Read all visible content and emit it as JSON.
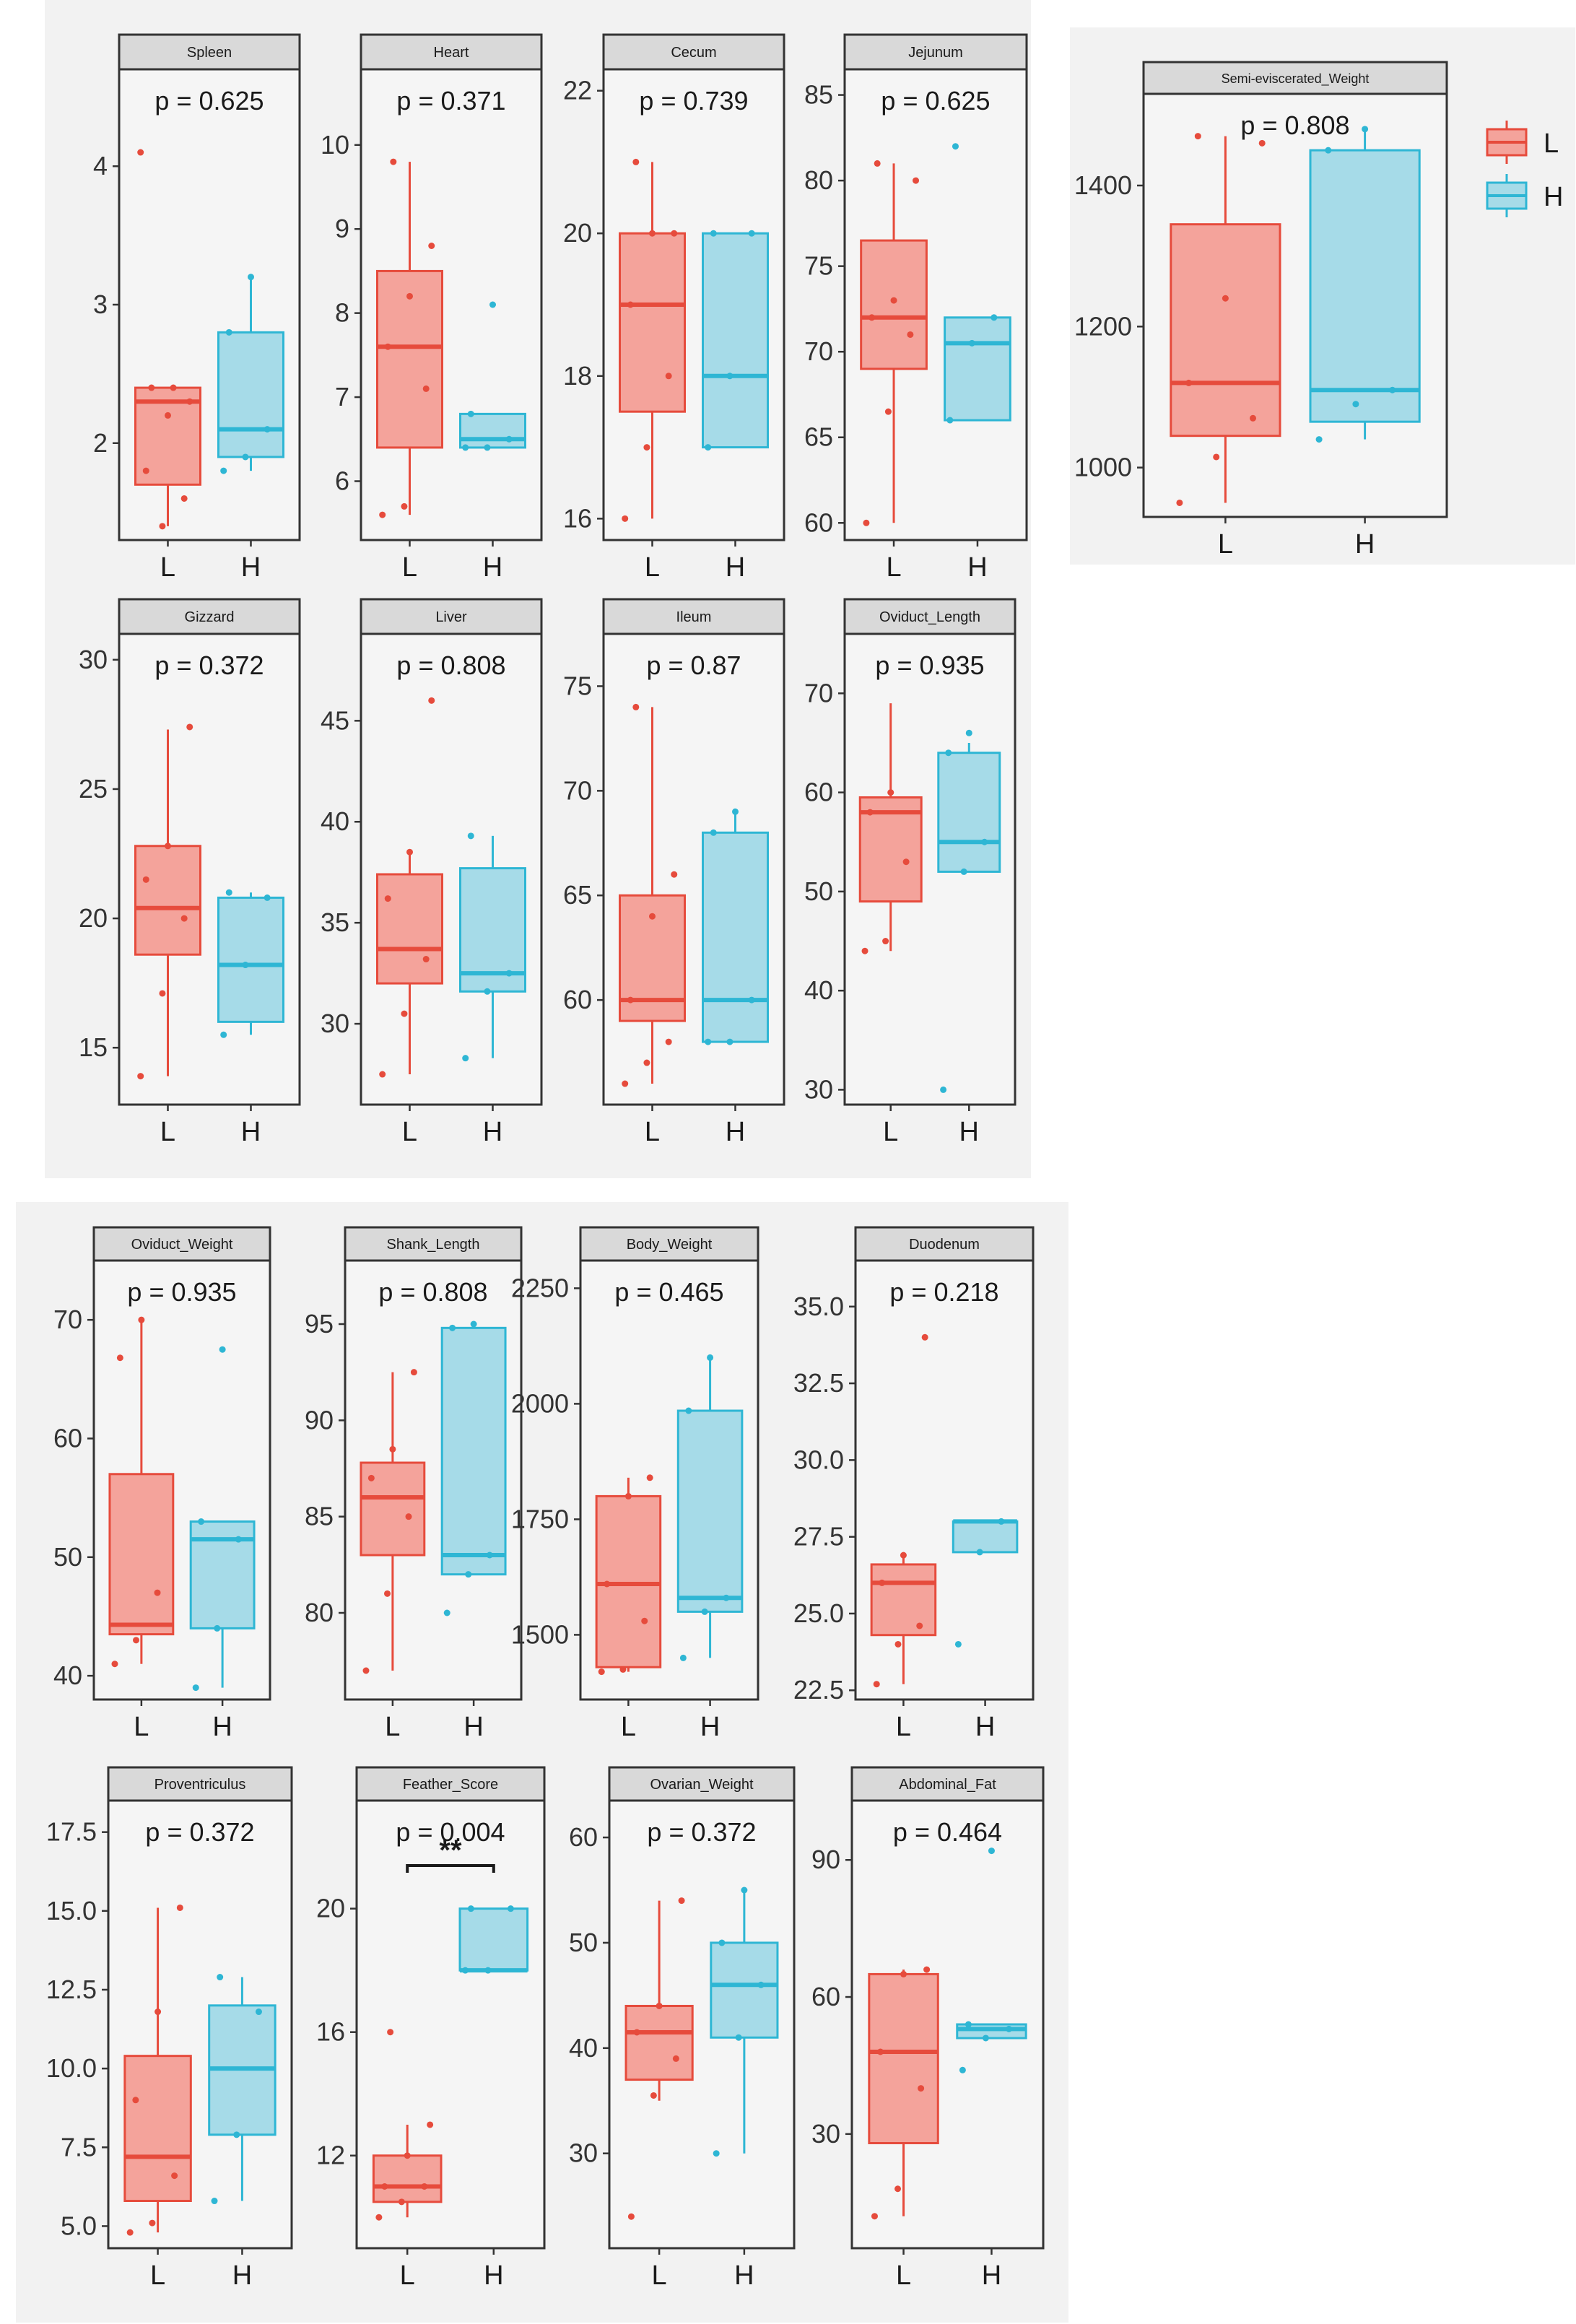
{
  "colors": {
    "L_fill": "#f4a39b",
    "L_line": "#e64b3c",
    "H_fill": "#a6dbe8",
    "H_line": "#2eb6d4"
  },
  "legend": {
    "items": [
      "L",
      "H"
    ]
  },
  "chart_data": [
    {
      "type": "box",
      "title": "Spleen",
      "pvalue": "p = 0.625",
      "ylim": [
        1.3,
        4.7
      ],
      "yticks": [
        {
          "v": 2,
          "label": "2"
        },
        {
          "v": 3,
          "label": "3"
        },
        {
          "v": 4,
          "label": "4"
        }
      ],
      "categories": [
        "L",
        "H"
      ],
      "series": [
        {
          "name": "L",
          "min": 1.4,
          "q1": 1.7,
          "median": 2.3,
          "q3": 2.4,
          "max": 2.4,
          "points": [
            4.1,
            1.4,
            1.6,
            1.8,
            2.2,
            2.3,
            2.4,
            2.4
          ]
        },
        {
          "name": "H",
          "min": 1.8,
          "q1": 1.9,
          "median": 2.1,
          "q3": 2.8,
          "max": 3.2,
          "points": [
            1.8,
            1.9,
            2.1,
            2.8,
            3.2
          ]
        }
      ]
    },
    {
      "type": "box",
      "title": "Heart",
      "pvalue": "p = 0.371",
      "ylim": [
        5.3,
        10.9
      ],
      "yticks": [
        {
          "v": 6,
          "label": "6"
        },
        {
          "v": 7,
          "label": "7"
        },
        {
          "v": 8,
          "label": "8"
        },
        {
          "v": 9,
          "label": "9"
        },
        {
          "v": 10,
          "label": "10"
        }
      ],
      "categories": [
        "L",
        "H"
      ],
      "series": [
        {
          "name": "L",
          "min": 5.6,
          "q1": 6.4,
          "median": 7.6,
          "q3": 8.5,
          "max": 9.8,
          "points": [
            5.6,
            5.7,
            7.1,
            7.6,
            8.2,
            8.8,
            9.8
          ]
        },
        {
          "name": "H",
          "min": 6.4,
          "q1": 6.4,
          "median": 6.5,
          "q3": 6.8,
          "max": 6.8,
          "points": [
            6.4,
            6.4,
            6.5,
            6.8,
            8.1
          ]
        }
      ]
    },
    {
      "type": "box",
      "title": "Cecum",
      "pvalue": "p = 0.739",
      "ylim": [
        15.7,
        22.3
      ],
      "yticks": [
        {
          "v": 16,
          "label": "16"
        },
        {
          "v": 18,
          "label": "18"
        },
        {
          "v": 20,
          "label": "20"
        },
        {
          "v": 22,
          "label": "22"
        }
      ],
      "categories": [
        "L",
        "H"
      ],
      "series": [
        {
          "name": "L",
          "min": 16,
          "q1": 17.5,
          "median": 19,
          "q3": 20,
          "max": 21,
          "points": [
            16,
            17,
            18,
            19,
            20,
            20,
            21
          ]
        },
        {
          "name": "H",
          "min": 17,
          "q1": 17,
          "median": 18,
          "q3": 20,
          "max": 20,
          "points": [
            17,
            18,
            20,
            20
          ]
        }
      ]
    },
    {
      "type": "box",
      "title": "Jejunum",
      "pvalue": "p = 0.625",
      "ylim": [
        59,
        86.5
      ],
      "yticks": [
        {
          "v": 60,
          "label": "60"
        },
        {
          "v": 65,
          "label": "65"
        },
        {
          "v": 70,
          "label": "70"
        },
        {
          "v": 75,
          "label": "75"
        },
        {
          "v": 80,
          "label": "80"
        },
        {
          "v": 85,
          "label": "85"
        }
      ],
      "categories": [
        "L",
        "H"
      ],
      "series": [
        {
          "name": "L",
          "min": 60,
          "q1": 69,
          "median": 72,
          "q3": 76.5,
          "max": 81,
          "points": [
            60,
            66.5,
            71,
            72,
            73,
            80,
            81
          ]
        },
        {
          "name": "H",
          "min": 66,
          "q1": 66,
          "median": 70.5,
          "q3": 72,
          "max": 72,
          "points": [
            66,
            70.5,
            72,
            82
          ]
        }
      ]
    },
    {
      "type": "box",
      "title": "Semi-eviscerated_Weight",
      "pvalue": "p = 0.808",
      "ylim": [
        930,
        1530
      ],
      "yticks": [
        {
          "v": 1000,
          "label": "1000"
        },
        {
          "v": 1200,
          "label": "1200"
        },
        {
          "v": 1400,
          "label": "1400"
        }
      ],
      "categories": [
        "L",
        "H"
      ],
      "series": [
        {
          "name": "L",
          "min": 950,
          "q1": 1045,
          "median": 1120,
          "q3": 1345,
          "max": 1470,
          "points": [
            950,
            1015,
            1070,
            1120,
            1240,
            1460,
            1470
          ]
        },
        {
          "name": "H",
          "min": 1040,
          "q1": 1065,
          "median": 1110,
          "q3": 1450,
          "max": 1480,
          "points": [
            1040,
            1090,
            1110,
            1450,
            1480
          ]
        }
      ]
    },
    {
      "type": "box",
      "title": "Gizzard",
      "pvalue": "p = 0.372",
      "ylim": [
        12.8,
        31
      ],
      "yticks": [
        {
          "v": 15,
          "label": "15"
        },
        {
          "v": 20,
          "label": "20"
        },
        {
          "v": 25,
          "label": "25"
        },
        {
          "v": 30,
          "label": "30"
        }
      ],
      "categories": [
        "L",
        "H"
      ],
      "series": [
        {
          "name": "L",
          "min": 13.9,
          "q1": 18.6,
          "median": 20.4,
          "q3": 22.8,
          "max": 27.3,
          "points": [
            13.9,
            17.1,
            20.0,
            21.5,
            22.8,
            27.4
          ]
        },
        {
          "name": "H",
          "min": 15.5,
          "q1": 16,
          "median": 18.2,
          "q3": 20.8,
          "max": 21,
          "points": [
            15.5,
            18.2,
            20.8,
            21
          ]
        }
      ]
    },
    {
      "type": "box",
      "title": "Liver",
      "pvalue": "p = 0.808",
      "ylim": [
        26,
        49.3
      ],
      "yticks": [
        {
          "v": 30,
          "label": "30"
        },
        {
          "v": 35,
          "label": "35"
        },
        {
          "v": 40,
          "label": "40"
        },
        {
          "v": 45,
          "label": "45"
        }
      ],
      "categories": [
        "L",
        "H"
      ],
      "series": [
        {
          "name": "L",
          "min": 27.5,
          "q1": 32,
          "median": 33.7,
          "q3": 37.4,
          "max": 38.5,
          "points": [
            27.5,
            30.5,
            33.2,
            36.2,
            38.5,
            46
          ]
        },
        {
          "name": "H",
          "min": 28.3,
          "q1": 31.6,
          "median": 32.5,
          "q3": 37.7,
          "max": 39.3,
          "points": [
            28.3,
            31.6,
            32.5,
            39.3
          ]
        }
      ]
    },
    {
      "type": "box",
      "title": "Ileum",
      "pvalue": "p = 0.87",
      "ylim": [
        55,
        77.5
      ],
      "yticks": [
        {
          "v": 60,
          "label": "60"
        },
        {
          "v": 65,
          "label": "65"
        },
        {
          "v": 70,
          "label": "70"
        },
        {
          "v": 75,
          "label": "75"
        }
      ],
      "categories": [
        "L",
        "H"
      ],
      "series": [
        {
          "name": "L",
          "min": 56,
          "q1": 59,
          "median": 60,
          "q3": 65,
          "max": 74,
          "points": [
            56,
            57,
            58,
            60,
            64,
            66,
            74
          ]
        },
        {
          "name": "H",
          "min": 58,
          "q1": 58,
          "median": 60,
          "q3": 68,
          "max": 69,
          "points": [
            58,
            58,
            60,
            68,
            69
          ]
        }
      ]
    },
    {
      "type": "box",
      "title": "Oviduct_Length",
      "pvalue": "p = 0.935",
      "ylim": [
        28.5,
        76
      ],
      "yticks": [
        {
          "v": 30,
          "label": "30"
        },
        {
          "v": 40,
          "label": "40"
        },
        {
          "v": 50,
          "label": "50"
        },
        {
          "v": 60,
          "label": "60"
        },
        {
          "v": 70,
          "label": "70"
        }
      ],
      "categories": [
        "L",
        "H"
      ],
      "series": [
        {
          "name": "L",
          "min": 44,
          "q1": 49,
          "median": 58,
          "q3": 59.5,
          "max": 69,
          "points": [
            44,
            45,
            53,
            58,
            60
          ]
        },
        {
          "name": "H",
          "min": 52,
          "q1": 52,
          "median": 55,
          "q3": 64,
          "max": 65,
          "points": [
            30,
            52,
            55,
            64,
            66
          ]
        }
      ]
    },
    {
      "type": "box",
      "title": "Oviduct_Weight",
      "pvalue": "p = 0.935",
      "ylim": [
        38,
        75
      ],
      "yticks": [
        {
          "v": 40,
          "label": "40"
        },
        {
          "v": 50,
          "label": "50"
        },
        {
          "v": 60,
          "label": "60"
        },
        {
          "v": 70,
          "label": "70"
        }
      ],
      "categories": [
        "L",
        "H"
      ],
      "series": [
        {
          "name": "L",
          "min": 41,
          "q1": 43.5,
          "median": 44.3,
          "q3": 57,
          "max": 70,
          "points": [
            41,
            43,
            47,
            66.8,
            70
          ]
        },
        {
          "name": "H",
          "min": 39,
          "q1": 44,
          "median": 51.5,
          "q3": 53,
          "max": 53,
          "points": [
            39,
            44,
            51.5,
            53,
            67.5
          ]
        }
      ]
    },
    {
      "type": "box",
      "title": "Shank_Length",
      "pvalue": "p = 0.808",
      "ylim": [
        75.5,
        98.3
      ],
      "yticks": [
        {
          "v": 80,
          "label": "80"
        },
        {
          "v": 85,
          "label": "85"
        },
        {
          "v": 90,
          "label": "90"
        },
        {
          "v": 95,
          "label": "95"
        }
      ],
      "categories": [
        "L",
        "H"
      ],
      "series": [
        {
          "name": "L",
          "min": 77,
          "q1": 83,
          "median": 86,
          "q3": 87.8,
          "max": 92.5,
          "points": [
            77,
            81,
            85,
            87,
            88.5,
            92.5
          ]
        },
        {
          "name": "H",
          "min": 82,
          "q1": 82,
          "median": 83,
          "q3": 94.8,
          "max": 94.8,
          "points": [
            80,
            82,
            83,
            94.8,
            95
          ]
        }
      ]
    },
    {
      "type": "box",
      "title": "Body_Weight",
      "pvalue": "p = 0.465",
      "ylim": [
        1360,
        2310
      ],
      "yticks": [
        {
          "v": 1500,
          "label": "1500"
        },
        {
          "v": 1750,
          "label": "1750"
        },
        {
          "v": 2000,
          "label": "2000"
        },
        {
          "v": 2250,
          "label": "2250"
        }
      ],
      "categories": [
        "L",
        "H"
      ],
      "series": [
        {
          "name": "L",
          "min": 1420,
          "q1": 1430,
          "median": 1610,
          "q3": 1800,
          "max": 1840,
          "points": [
            1420,
            1425,
            1530,
            1610,
            1800,
            1840
          ]
        },
        {
          "name": "H",
          "min": 1450,
          "q1": 1550,
          "median": 1580,
          "q3": 1985,
          "max": 2100,
          "points": [
            1450,
            1550,
            1580,
            1985,
            2100
          ]
        }
      ]
    },
    {
      "type": "box",
      "title": "Duodenum",
      "pvalue": "p = 0.218",
      "ylim": [
        22.2,
        36.5
      ],
      "yticks": [
        {
          "v": 22.5,
          "label": "22.5"
        },
        {
          "v": 25,
          "label": "25.0"
        },
        {
          "v": 27.5,
          "label": "27.5"
        },
        {
          "v": 30,
          "label": "30.0"
        },
        {
          "v": 32.5,
          "label": "32.5"
        },
        {
          "v": 35,
          "label": "35.0"
        }
      ],
      "categories": [
        "L",
        "H"
      ],
      "series": [
        {
          "name": "L",
          "min": 22.7,
          "q1": 24.3,
          "median": 26.0,
          "q3": 26.6,
          "max": 27.0,
          "points": [
            22.7,
            24.0,
            24.6,
            26.0,
            26.9,
            34.0
          ]
        },
        {
          "name": "H",
          "min": 27.0,
          "q1": 27.0,
          "median": 28.0,
          "q3": 28.0,
          "max": 28.0,
          "points": [
            24.0,
            27.0,
            28.0
          ]
        }
      ]
    },
    {
      "type": "box",
      "title": "Proventriculus",
      "pvalue": "p = 0.372",
      "ylim": [
        4.3,
        18.5
      ],
      "yticks": [
        {
          "v": 5,
          "label": "5.0"
        },
        {
          "v": 7.5,
          "label": "7.5"
        },
        {
          "v": 10,
          "label": "10.0"
        },
        {
          "v": 12.5,
          "label": "12.5"
        },
        {
          "v": 15,
          "label": "15.0"
        },
        {
          "v": 17.5,
          "label": "17.5"
        }
      ],
      "categories": [
        "L",
        "H"
      ],
      "series": [
        {
          "name": "L",
          "min": 4.8,
          "q1": 5.8,
          "median": 7.2,
          "q3": 10.4,
          "max": 15.1,
          "points": [
            4.8,
            5.1,
            6.6,
            9.0,
            11.8,
            15.1
          ]
        },
        {
          "name": "H",
          "min": 5.8,
          "q1": 7.9,
          "median": 10.0,
          "q3": 12.0,
          "max": 12.9,
          "points": [
            5.8,
            7.9,
            11.8,
            12.9
          ]
        }
      ]
    },
    {
      "type": "box",
      "title": "Feather_Score",
      "pvalue": "p = 0.004",
      "significance": "**",
      "ylim": [
        9,
        23.5
      ],
      "yticks": [
        {
          "v": 12,
          "label": "12"
        },
        {
          "v": 16,
          "label": "16"
        },
        {
          "v": 20,
          "label": "20"
        }
      ],
      "categories": [
        "L",
        "H"
      ],
      "series": [
        {
          "name": "L",
          "min": 10,
          "q1": 10.5,
          "median": 11,
          "q3": 12,
          "max": 13,
          "points": [
            10,
            10.5,
            11,
            11,
            12,
            13,
            16
          ]
        },
        {
          "name": "H",
          "min": 18,
          "q1": 18,
          "median": 18,
          "q3": 20,
          "max": 20,
          "points": [
            18,
            18,
            20,
            20
          ]
        }
      ]
    },
    {
      "type": "box",
      "title": "Ovarian_Weight",
      "pvalue": "p = 0.372",
      "ylim": [
        21,
        63.5
      ],
      "yticks": [
        {
          "v": 30,
          "label": "30"
        },
        {
          "v": 40,
          "label": "40"
        },
        {
          "v": 50,
          "label": "50"
        },
        {
          "v": 60,
          "label": "60"
        }
      ],
      "categories": [
        "L",
        "H"
      ],
      "series": [
        {
          "name": "L",
          "min": 35,
          "q1": 37,
          "median": 41.5,
          "q3": 44,
          "max": 54,
          "points": [
            24,
            35.5,
            39,
            41.5,
            44,
            54
          ]
        },
        {
          "name": "H",
          "min": 30,
          "q1": 41,
          "median": 46,
          "q3": 50,
          "max": 55,
          "points": [
            30,
            41,
            46,
            50,
            55
          ]
        }
      ]
    },
    {
      "type": "box",
      "title": "Abdominal_Fat",
      "pvalue": "p = 0.464",
      "ylim": [
        5,
        103
      ],
      "yticks": [
        {
          "v": 30,
          "label": "30"
        },
        {
          "v": 60,
          "label": "60"
        },
        {
          "v": 90,
          "label": "90"
        }
      ],
      "categories": [
        "L",
        "H"
      ],
      "series": [
        {
          "name": "L",
          "min": 12,
          "q1": 28,
          "median": 48,
          "q3": 65,
          "max": 66,
          "points": [
            12,
            18,
            40,
            48,
            65,
            66
          ]
        },
        {
          "name": "H",
          "min": 51,
          "q1": 51,
          "median": 53,
          "q3": 54,
          "max": 54,
          "points": [
            44,
            51,
            53,
            54,
            92
          ]
        }
      ]
    }
  ]
}
